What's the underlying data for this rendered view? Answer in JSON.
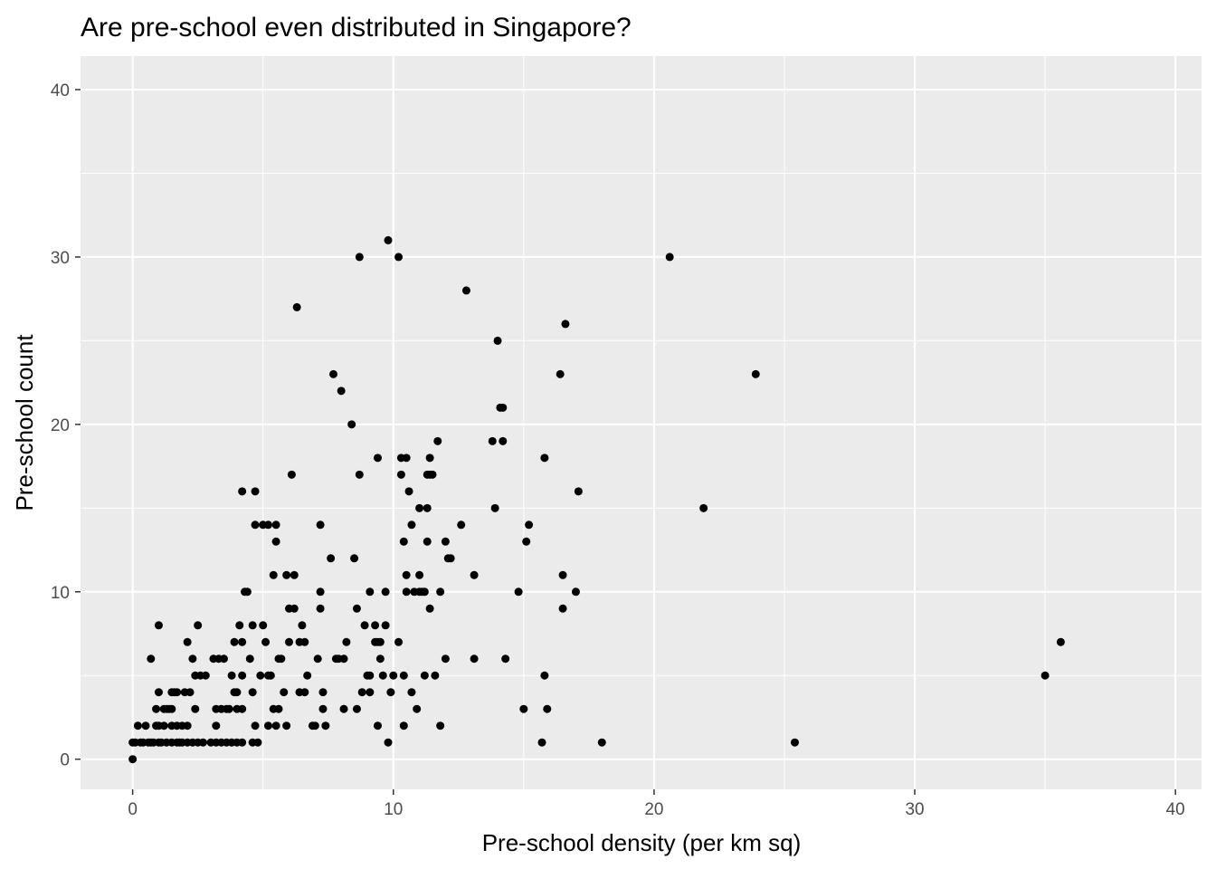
{
  "chart_data": {
    "type": "scatter",
    "title": "Are pre-school even distributed in Singapore?",
    "xlabel": "Pre-school density (per km sq)",
    "ylabel": "Pre-school count",
    "xlim": [
      -2,
      41
    ],
    "ylim": [
      -1.8,
      42
    ],
    "x_ticks": [
      0,
      10,
      20,
      30,
      40
    ],
    "y_ticks": [
      0,
      10,
      20,
      30,
      40
    ],
    "x_tick_labels": [
      "0",
      "10",
      "20",
      "30",
      "40"
    ],
    "y_tick_labels": [
      "0",
      "10",
      "20",
      "30",
      "40"
    ],
    "grid": true,
    "panel_background": "#ebebeb",
    "grid_color": "#ffffff",
    "point_color": "#000000",
    "points": [
      [
        0,
        0
      ],
      [
        0,
        1
      ],
      [
        0.1,
        1
      ],
      [
        0.2,
        2
      ],
      [
        0.3,
        1
      ],
      [
        0.4,
        1
      ],
      [
        0.5,
        2
      ],
      [
        0.6,
        1
      ],
      [
        0.7,
        1
      ],
      [
        0.7,
        6
      ],
      [
        0.8,
        1
      ],
      [
        0.9,
        2
      ],
      [
        0.9,
        3
      ],
      [
        1.0,
        1
      ],
      [
        1.0,
        2
      ],
      [
        1.0,
        4
      ],
      [
        1.0,
        8
      ],
      [
        1.1,
        1
      ],
      [
        1.2,
        2
      ],
      [
        1.2,
        3
      ],
      [
        1.3,
        1
      ],
      [
        1.3,
        3
      ],
      [
        1.4,
        3
      ],
      [
        1.5,
        1
      ],
      [
        1.5,
        2
      ],
      [
        1.5,
        3
      ],
      [
        1.5,
        4
      ],
      [
        1.6,
        4
      ],
      [
        1.7,
        1
      ],
      [
        1.7,
        2
      ],
      [
        1.7,
        4
      ],
      [
        1.8,
        1
      ],
      [
        1.9,
        1
      ],
      [
        1.9,
        2
      ],
      [
        2.0,
        4
      ],
      [
        2.1,
        1
      ],
      [
        2.1,
        2
      ],
      [
        2.1,
        7
      ],
      [
        2.2,
        4
      ],
      [
        2.3,
        1
      ],
      [
        2.3,
        6
      ],
      [
        2.4,
        3
      ],
      [
        2.4,
        5
      ],
      [
        2.5,
        1
      ],
      [
        2.5,
        8
      ],
      [
        2.6,
        5
      ],
      [
        2.7,
        1
      ],
      [
        2.8,
        5
      ],
      [
        3.0,
        1
      ],
      [
        3.1,
        6
      ],
      [
        3.2,
        1
      ],
      [
        3.2,
        2
      ],
      [
        3.2,
        3
      ],
      [
        3.3,
        6
      ],
      [
        3.4,
        3
      ],
      [
        3.4,
        1
      ],
      [
        3.5,
        6
      ],
      [
        3.6,
        3
      ],
      [
        3.6,
        1
      ],
      [
        3.7,
        3
      ],
      [
        3.8,
        5
      ],
      [
        3.8,
        1
      ],
      [
        3.9,
        4
      ],
      [
        3.9,
        7
      ],
      [
        4.0,
        3
      ],
      [
        4.0,
        4
      ],
      [
        4.0,
        1
      ],
      [
        4.1,
        8
      ],
      [
        4.2,
        1
      ],
      [
        4.2,
        7
      ],
      [
        4.2,
        5
      ],
      [
        4.2,
        3
      ],
      [
        4.2,
        16
      ],
      [
        4.3,
        10
      ],
      [
        4.4,
        10
      ],
      [
        4.5,
        6
      ],
      [
        4.6,
        4
      ],
      [
        4.6,
        8
      ],
      [
        4.6,
        1
      ],
      [
        4.7,
        2
      ],
      [
        4.7,
        16
      ],
      [
        4.7,
        14
      ],
      [
        4.8,
        1
      ],
      [
        4.9,
        5
      ],
      [
        5.0,
        8
      ],
      [
        5.0,
        14
      ],
      [
        5.1,
        7
      ],
      [
        5.2,
        14
      ],
      [
        5.2,
        2
      ],
      [
        5.2,
        5
      ],
      [
        5.3,
        5
      ],
      [
        5.4,
        11
      ],
      [
        5.4,
        3
      ],
      [
        5.5,
        14
      ],
      [
        5.5,
        13
      ],
      [
        5.5,
        2
      ],
      [
        5.6,
        6
      ],
      [
        5.6,
        3
      ],
      [
        5.7,
        6
      ],
      [
        5.8,
        4
      ],
      [
        5.9,
        2
      ],
      [
        5.9,
        11
      ],
      [
        6.0,
        7
      ],
      [
        6.0,
        9
      ],
      [
        6.1,
        17
      ],
      [
        6.2,
        11
      ],
      [
        6.2,
        9
      ],
      [
        6.3,
        27
      ],
      [
        6.4,
        4
      ],
      [
        6.4,
        7
      ],
      [
        6.5,
        8
      ],
      [
        6.6,
        7
      ],
      [
        6.6,
        4
      ],
      [
        6.7,
        5
      ],
      [
        6.9,
        2
      ],
      [
        7.0,
        2
      ],
      [
        7.1,
        6
      ],
      [
        7.2,
        14
      ],
      [
        7.2,
        10
      ],
      [
        7.2,
        9
      ],
      [
        7.3,
        4
      ],
      [
        7.3,
        3
      ],
      [
        7.4,
        2
      ],
      [
        7.6,
        12
      ],
      [
        7.7,
        23
      ],
      [
        7.8,
        6
      ],
      [
        7.9,
        6
      ],
      [
        8.0,
        22
      ],
      [
        8.1,
        6
      ],
      [
        8.1,
        3
      ],
      [
        8.2,
        7
      ],
      [
        8.4,
        20
      ],
      [
        8.5,
        12
      ],
      [
        8.6,
        3
      ],
      [
        8.6,
        9
      ],
      [
        8.7,
        30
      ],
      [
        8.7,
        17
      ],
      [
        8.8,
        4
      ],
      [
        8.9,
        8
      ],
      [
        9.0,
        5
      ],
      [
        9.1,
        5
      ],
      [
        9.1,
        4
      ],
      [
        9.1,
        10
      ],
      [
        9.3,
        7
      ],
      [
        9.3,
        8
      ],
      [
        9.4,
        7
      ],
      [
        9.4,
        2
      ],
      [
        9.4,
        18
      ],
      [
        9.5,
        7
      ],
      [
        9.5,
        6
      ],
      [
        9.6,
        5
      ],
      [
        9.7,
        8
      ],
      [
        9.7,
        10
      ],
      [
        9.8,
        1
      ],
      [
        9.8,
        31
      ],
      [
        9.9,
        4
      ],
      [
        10.0,
        5
      ],
      [
        10.2,
        30
      ],
      [
        10.2,
        7
      ],
      [
        10.3,
        17
      ],
      [
        10.3,
        18
      ],
      [
        10.4,
        13
      ],
      [
        10.4,
        5
      ],
      [
        10.4,
        2
      ],
      [
        10.5,
        18
      ],
      [
        10.5,
        11
      ],
      [
        10.5,
        10
      ],
      [
        10.6,
        16
      ],
      [
        10.7,
        14
      ],
      [
        10.7,
        4
      ],
      [
        10.8,
        10
      ],
      [
        10.9,
        3
      ],
      [
        11.0,
        15
      ],
      [
        11.0,
        11
      ],
      [
        11.0,
        10
      ],
      [
        11.1,
        10
      ],
      [
        11.2,
        10
      ],
      [
        11.2,
        5
      ],
      [
        11.3,
        15
      ],
      [
        11.3,
        13
      ],
      [
        11.3,
        17
      ],
      [
        11.4,
        9
      ],
      [
        11.4,
        17
      ],
      [
        11.4,
        18
      ],
      [
        11.5,
        17
      ],
      [
        11.6,
        5
      ],
      [
        11.7,
        19
      ],
      [
        11.8,
        10
      ],
      [
        11.8,
        2
      ],
      [
        12.0,
        6
      ],
      [
        12.0,
        13
      ],
      [
        12.1,
        12
      ],
      [
        12.2,
        12
      ],
      [
        12.6,
        14
      ],
      [
        12.8,
        28
      ],
      [
        13.1,
        11
      ],
      [
        13.1,
        6
      ],
      [
        13.8,
        19
      ],
      [
        13.9,
        15
      ],
      [
        14.0,
        25
      ],
      [
        14.1,
        21
      ],
      [
        14.2,
        21
      ],
      [
        14.2,
        19
      ],
      [
        14.3,
        6
      ],
      [
        14.8,
        10
      ],
      [
        15.0,
        3
      ],
      [
        15.1,
        13
      ],
      [
        15.2,
        14
      ],
      [
        15.7,
        1
      ],
      [
        15.8,
        18
      ],
      [
        15.8,
        5
      ],
      [
        15.9,
        3
      ],
      [
        16.4,
        23
      ],
      [
        16.5,
        11
      ],
      [
        16.5,
        9
      ],
      [
        16.6,
        26
      ],
      [
        17.0,
        10
      ],
      [
        17.1,
        16
      ],
      [
        18.0,
        1
      ],
      [
        20.6,
        30
      ],
      [
        21.9,
        15
      ],
      [
        23.9,
        23
      ],
      [
        25.4,
        1
      ],
      [
        35.0,
        5
      ],
      [
        35.6,
        7
      ]
    ]
  }
}
